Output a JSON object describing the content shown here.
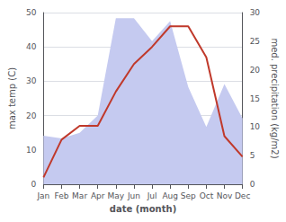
{
  "chart_data": {
    "type": "line",
    "xlabel": "date (month)",
    "ylabel": "max temp (C)",
    "y2label": "med. precipitation (kg/m2)",
    "categories": [
      "Jan",
      "Feb",
      "Mar",
      "Apr",
      "May",
      "Jun",
      "Jul",
      "Aug",
      "Sep",
      "Oct",
      "Nov",
      "Dec"
    ],
    "series": [
      {
        "type": "area",
        "color": "#c5caf0",
        "axis": "y2",
        "values": [
          8.5,
          8.0,
          9.0,
          12.0,
          29.0,
          29.0,
          25.0,
          28.5,
          17.0,
          10.0,
          17.5,
          11.5
        ]
      },
      {
        "type": "line",
        "color": "#c0392b",
        "values": [
          2,
          13,
          17,
          17,
          27,
          35,
          40,
          46,
          46,
          37,
          14,
          8
        ]
      }
    ],
    "ylim": [
      0,
      50
    ],
    "yticks": [
      0,
      10,
      20,
      30,
      40,
      50
    ],
    "y2lim": [
      0,
      30
    ],
    "y2ticks": [
      0,
      5,
      10,
      15,
      20,
      25,
      30
    ],
    "grid": true
  }
}
